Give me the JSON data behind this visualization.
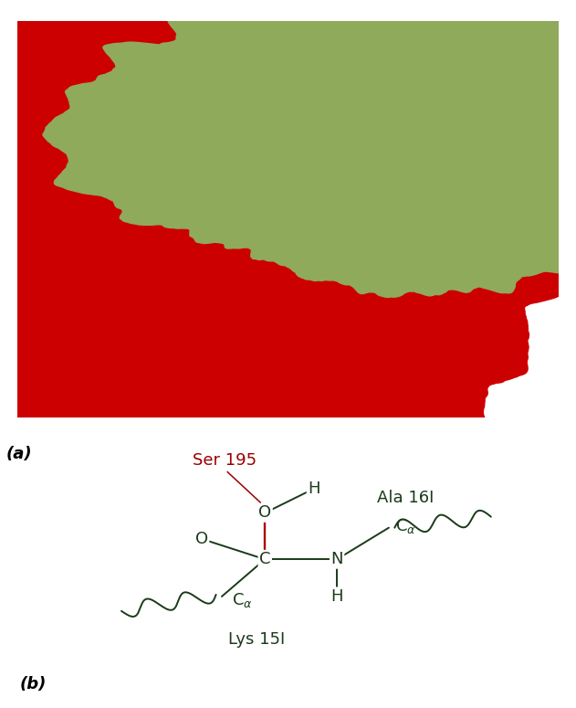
{
  "fig_width": 6.31,
  "fig_height": 7.75,
  "panel_a_label": "(a)",
  "panel_b_label": "(b)",
  "bg_color_top": "#000000",
  "bg_color_bottom": "#ffffff",
  "red_protein_color": "#cc0000",
  "green_protein_color": "#8faa5a",
  "bond_color_red": "#aa0000",
  "bond_color_dark": "#1a3a1a",
  "text_ser": "Ser 195",
  "text_ala": "Ala 16I",
  "text_lys": "Lys 15I"
}
